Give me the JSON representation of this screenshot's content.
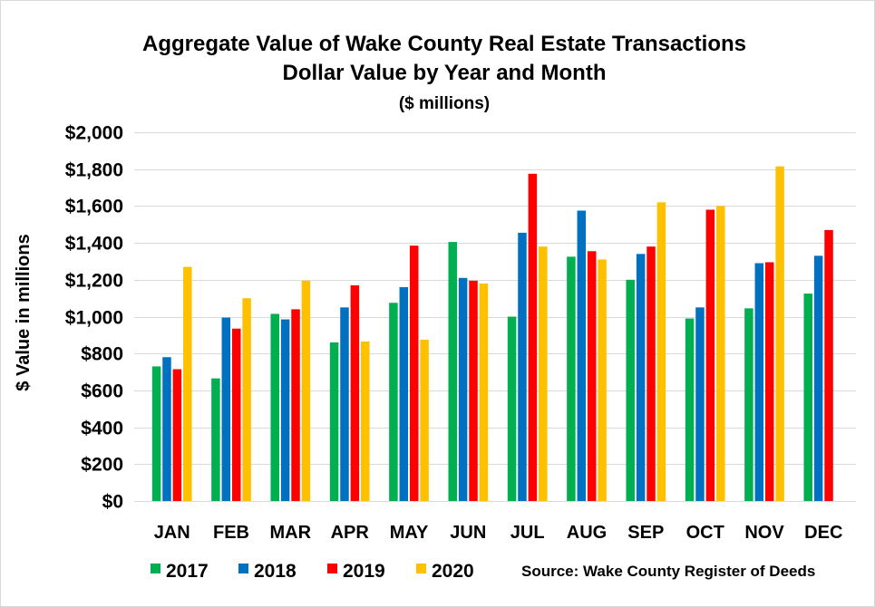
{
  "chart_data": {
    "type": "bar",
    "title": "Aggregate Value of Wake County Real Estate Transactions",
    "subtitle": "Dollar Value by Year and Month",
    "units_note": "($ millions)",
    "ylabel": "$ Value in millions",
    "ylim": [
      0,
      2000
    ],
    "y_ticks": [
      0,
      200,
      400,
      600,
      800,
      1000,
      1200,
      1400,
      1600,
      1800,
      2000
    ],
    "y_tick_labels": [
      "$0",
      "$200",
      "$400",
      "$600",
      "$800",
      "$1,000",
      "$1,200",
      "$1,400",
      "$1,600",
      "$1,800",
      "$2,000"
    ],
    "categories": [
      "JAN",
      "FEB",
      "MAR",
      "APR",
      "MAY",
      "JUN",
      "JUL",
      "AUG",
      "SEP",
      "OCT",
      "NOV",
      "DEC"
    ],
    "series": [
      {
        "name": "2017",
        "color": "#00B050",
        "values": [
          730,
          665,
          1015,
          860,
          1075,
          1405,
          1000,
          1325,
          1200,
          990,
          1045,
          1125
        ]
      },
      {
        "name": "2018",
        "color": "#0070C0",
        "values": [
          780,
          995,
          985,
          1050,
          1160,
          1210,
          1455,
          1575,
          1340,
          1050,
          1290,
          1330
        ]
      },
      {
        "name": "2019",
        "color": "#FF0000",
        "values": [
          715,
          935,
          1040,
          1170,
          1385,
          1195,
          1775,
          1355,
          1380,
          1580,
          1295,
          1470
        ]
      },
      {
        "name": "2020",
        "color": "#FFC000",
        "values": [
          1270,
          1100,
          1195,
          865,
          875,
          1180,
          1380,
          1310,
          1620,
          1600,
          1815,
          null
        ]
      }
    ],
    "grid": true,
    "legend": "bottom-left",
    "source": "Source: Wake County Register of Deeds"
  }
}
